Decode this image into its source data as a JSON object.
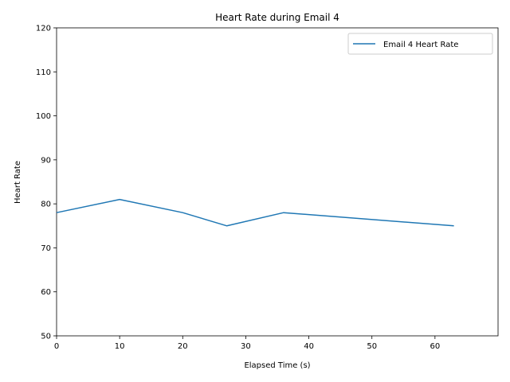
{
  "chart_data": {
    "type": "line",
    "title": "Heart Rate during Email 4",
    "xlabel": "Elapsed Time (s)",
    "ylabel": "Heart Rate",
    "xlim": [
      0,
      70
    ],
    "ylim": [
      50,
      120
    ],
    "xticks": [
      0,
      10,
      20,
      30,
      40,
      50,
      60
    ],
    "yticks": [
      50,
      60,
      70,
      80,
      90,
      100,
      110,
      120
    ],
    "grid": false,
    "legend_position": "top-right",
    "series": [
      {
        "name": "Email 4 Heart Rate",
        "color": "#1f77b4",
        "x": [
          0,
          10,
          20,
          27,
          36,
          63
        ],
        "y": [
          78,
          81,
          78,
          75,
          78,
          75
        ]
      }
    ]
  }
}
